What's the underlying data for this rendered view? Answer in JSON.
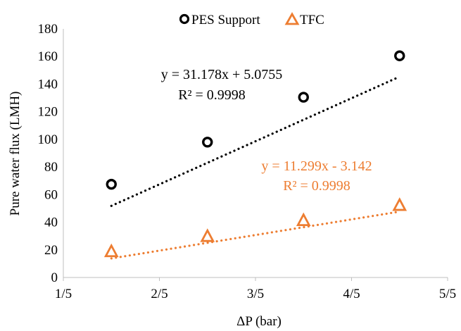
{
  "chart_data": {
    "type": "scatter",
    "title": "",
    "xlabel": "ΔP (bar)",
    "ylabel": "Pure water flux (LMH)",
    "x_ticks": [
      "1/5",
      "2/5",
      "3/5",
      "4/5",
      "5/5"
    ],
    "xlim": [
      1,
      5
    ],
    "y_ticks": [
      "0",
      "20",
      "40",
      "60",
      "80",
      "100",
      "120",
      "140",
      "160",
      "180"
    ],
    "ylim": [
      0,
      180
    ],
    "grid": false,
    "legend_position": "top",
    "series": [
      {
        "name": "PES Support",
        "marker": "circle",
        "color": "#000000",
        "x": [
          1.5,
          2.5,
          3.5,
          4.5
        ],
        "y": [
          67.5,
          98,
          130.5,
          160.5
        ],
        "trendline": {
          "type": "linear",
          "slope": 31.178,
          "intercept": 5.0755,
          "style": "dotted"
        },
        "equation": "y = 31.178x + 5.0755",
        "r2": "R² = 0.9998"
      },
      {
        "name": "TFC",
        "marker": "triangle",
        "color": "#ed7d31",
        "x": [
          1.5,
          2.5,
          3.5,
          4.5
        ],
        "y": [
          19,
          30,
          41.5,
          52.5
        ],
        "trendline": {
          "type": "linear",
          "slope": 11.299,
          "intercept": -3.142,
          "style": "dotted"
        },
        "equation": "y = 11.299x - 3.142",
        "r2": "R² = 0.9998"
      }
    ]
  }
}
